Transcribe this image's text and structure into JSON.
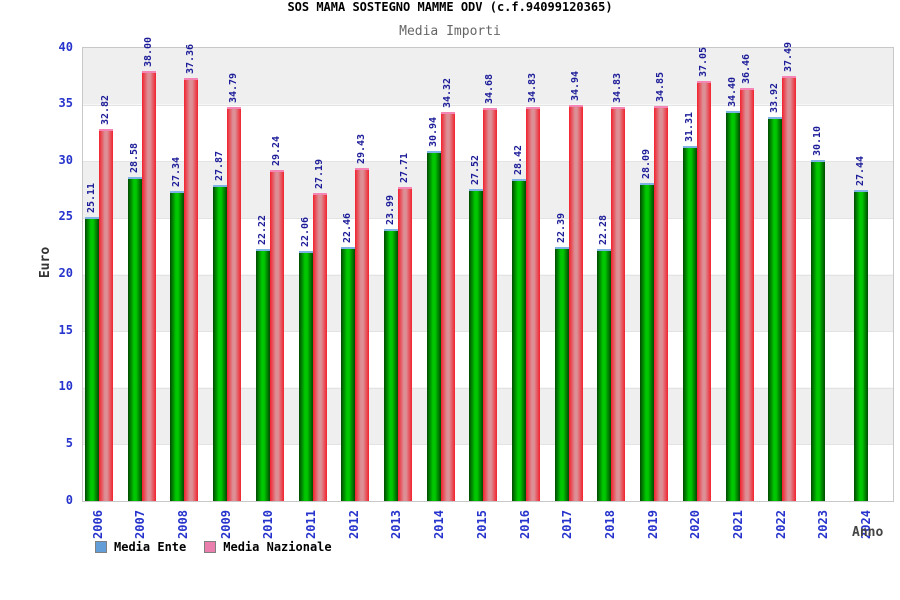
{
  "chart_data": {
    "type": "bar",
    "title": "SOS MAMA SOSTEGNO MAMME ODV (c.f.94099120365)",
    "subtitle": "Media Importi",
    "ylabel": "Euro",
    "xlabel": "Anno",
    "ylim": [
      0,
      40
    ],
    "yticks": [
      0,
      5,
      10,
      15,
      20,
      25,
      30,
      35,
      40
    ],
    "grid": "alternating horizontal gray/white bands of 5 units",
    "legend_position": "bottom-left",
    "value_label_decimals": 2,
    "categories": [
      "2006",
      "2007",
      "2008",
      "2009",
      "2010",
      "2011",
      "2012",
      "2013",
      "2014",
      "2015",
      "2016",
      "2017",
      "2018",
      "2019",
      "2020",
      "2021",
      "2022",
      "2023",
      "2024"
    ],
    "series": [
      {
        "name": "Media Ente",
        "legend_color": "#649ed8",
        "bar_edge": "#004a00",
        "bar_mid": "#00c800",
        "bar_cap": "#7fb2e5",
        "values": [
          25.11,
          28.58,
          27.34,
          27.87,
          22.22,
          22.06,
          22.46,
          23.99,
          30.94,
          27.52,
          28.42,
          22.39,
          22.28,
          28.09,
          31.31,
          34.4,
          33.92,
          30.1,
          27.44
        ]
      },
      {
        "name": "Media Nazionale",
        "legend_color": "#ea7fae",
        "bar_edge": "#f2222e",
        "bar_mid": "#dc9096",
        "bar_cap": "#f585b5",
        "values": [
          32.82,
          38.0,
          37.36,
          34.79,
          29.24,
          27.19,
          29.43,
          27.71,
          34.32,
          34.68,
          34.83,
          34.94,
          34.83,
          34.85,
          37.05,
          36.46,
          37.49,
          null,
          null
        ]
      }
    ]
  },
  "colors": {
    "axis_text": "#2633cc",
    "value_text": "#1c1c99",
    "subtitle_text": "#666666",
    "axis_title_text": "#333333",
    "plot_border": "#c8c8c8",
    "band": "#efefef",
    "background": "#ffffff"
  }
}
